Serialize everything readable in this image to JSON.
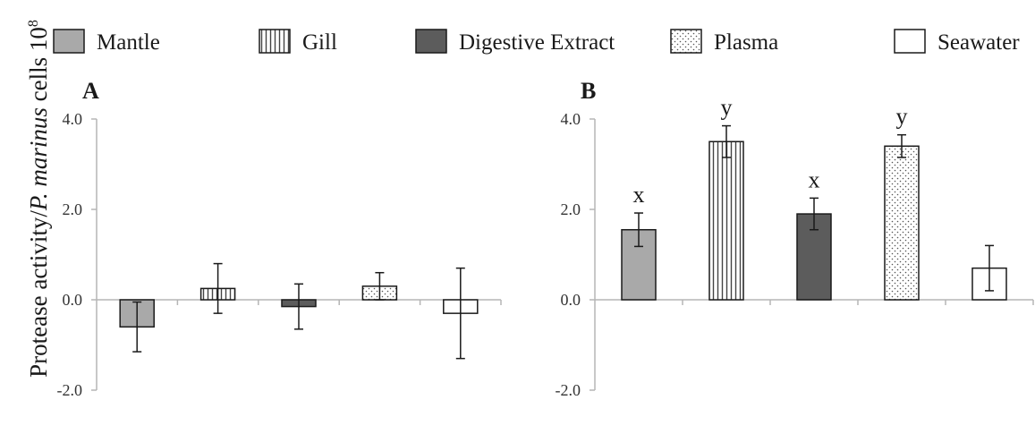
{
  "ylabel": {
    "prefix": "Protease activity/",
    "italic": "P. marinus",
    "suffix": " cells 10",
    "superscript": "8"
  },
  "legend": [
    {
      "name": "Mantle",
      "fill": "#a9a9a9",
      "pattern": "solid"
    },
    {
      "name": "Gill",
      "fill": "#ffffff",
      "pattern": "vertical-lines"
    },
    {
      "name": "Digestive Extract",
      "fill": "#5c5c5c",
      "pattern": "solid"
    },
    {
      "name": "Plasma",
      "fill": "#ffffff",
      "pattern": "dots"
    },
    {
      "name": "Seawater",
      "fill": "#ffffff",
      "pattern": "solid"
    }
  ],
  "chart_data": [
    {
      "type": "bar",
      "panel_label": "A",
      "categories": [
        "Mantle",
        "Gill",
        "Digestive Extract",
        "Plasma",
        "Seawater"
      ],
      "values": [
        -0.6,
        0.25,
        -0.15,
        0.3,
        -0.3
      ],
      "errors": [
        0.55,
        0.55,
        0.5,
        0.3,
        1.0
      ],
      "annotations": [
        "",
        "",
        "",
        "",
        ""
      ],
      "ylim": [
        -2.0,
        4.0
      ],
      "yticks": [
        "4.0",
        "2.0",
        "0.0",
        "-2.0"
      ],
      "ytick_values": [
        4.0,
        2.0,
        0.0,
        -2.0
      ]
    },
    {
      "type": "bar",
      "panel_label": "B",
      "categories": [
        "Mantle",
        "Gill",
        "Digestive Extract",
        "Plasma",
        "Seawater"
      ],
      "values": [
        1.55,
        3.5,
        1.9,
        3.4,
        0.7
      ],
      "errors": [
        0.37,
        0.35,
        0.35,
        0.25,
        0.5
      ],
      "annotations": [
        "x",
        "y",
        "x",
        "y",
        ""
      ],
      "ylim": [
        -2.0,
        4.0
      ],
      "yticks": [
        "4.0",
        "2.0",
        "0.0",
        "-2.0"
      ],
      "ytick_values": [
        4.0,
        2.0,
        0.0,
        -2.0
      ]
    }
  ]
}
